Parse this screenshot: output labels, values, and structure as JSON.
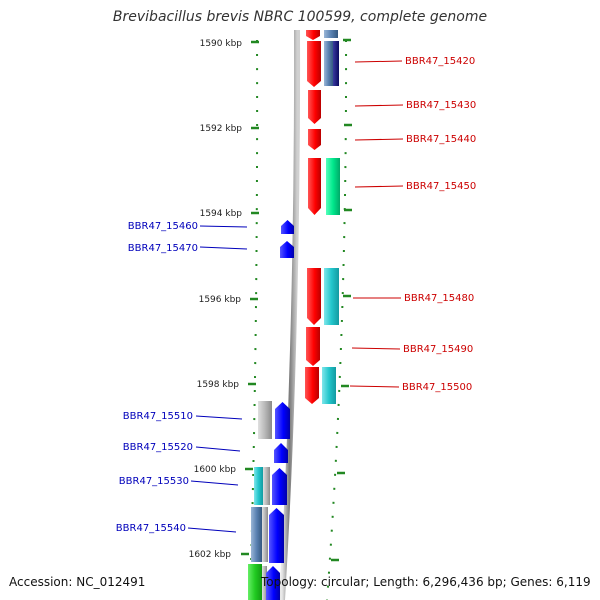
{
  "title": "Brevibacillus brevis NBRC 100599, complete genome",
  "accession_text": "Accession: NC_012491",
  "topology_text": "Topology: circular; Length: 6,296,436 bp; Genes: 6,119",
  "colors": {
    "forward_gene": "#ff0000",
    "reverse_gene": "#0000ff",
    "backbone": "#999999",
    "tick": "#228822",
    "label_red": "#cc0000",
    "label_blue": "#0000bb"
  },
  "kbp_ticks": [
    "1590 kbp",
    "1592 kbp",
    "1594 kbp",
    "1596 kbp",
    "1598 kbp",
    "1600 kbp",
    "1602 kbp"
  ],
  "forward_labels": [
    "BBR47_15420",
    "BBR47_15430",
    "BBR47_15440",
    "BBR47_15450",
    "BBR47_15480",
    "BBR47_15490",
    "BBR47_15500"
  ],
  "reverse_labels": [
    "BBR47_15460",
    "BBR47_15470",
    "BBR47_15510",
    "BBR47_15520",
    "BBR47_15530",
    "BBR47_15540"
  ]
}
